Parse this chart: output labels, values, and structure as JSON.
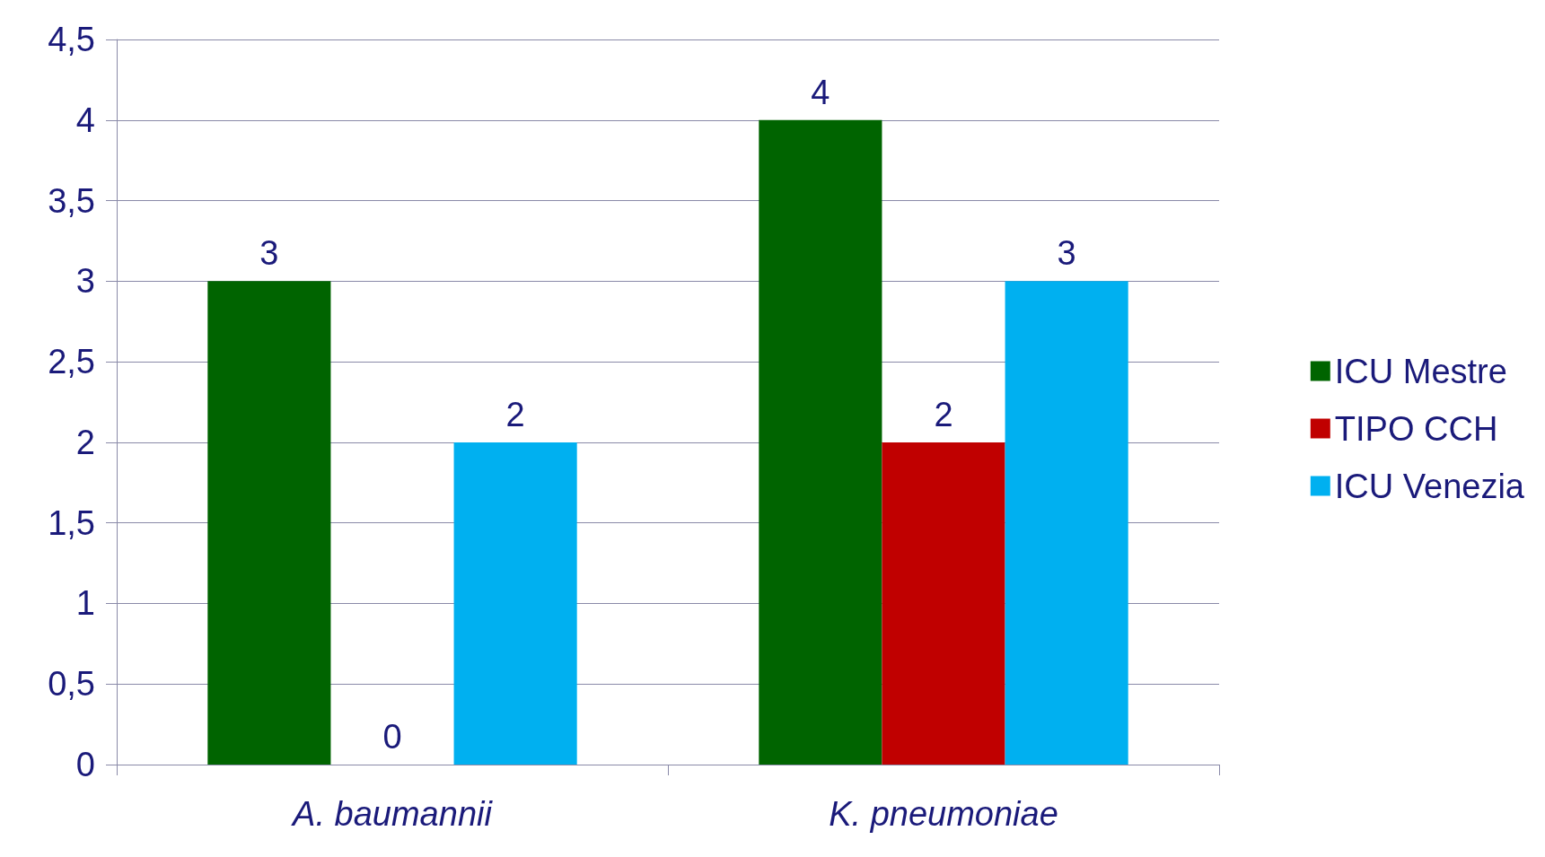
{
  "chart_data": {
    "type": "bar",
    "categories": [
      "A. baumannii",
      "K. pneumoniae"
    ],
    "series": [
      {
        "name": "ICU Mestre",
        "color": "#006400",
        "values": [
          3,
          4
        ]
      },
      {
        "name": "TIPO CCH",
        "color": "#c00000",
        "values": [
          0,
          2
        ]
      },
      {
        "name": "ICU Venezia",
        "color": "#00b0f0",
        "values": [
          2,
          3
        ]
      }
    ],
    "ylim": [
      0,
      4.5
    ],
    "yticks": [
      0,
      {
        "value": 0.5,
        "label": "0,5"
      },
      1,
      {
        "value": 1.5,
        "label": "1,5"
      },
      2,
      {
        "value": 2.5,
        "label": "2,5"
      },
      3,
      {
        "value": 3.5,
        "label": "3,5"
      },
      4,
      {
        "value": 4.5,
        "label": "4,5"
      }
    ],
    "grid": "y",
    "legend": "right",
    "data_labels": true
  }
}
